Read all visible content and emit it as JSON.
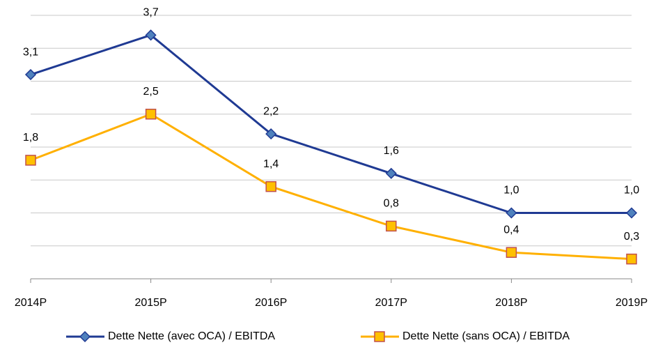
{
  "chart_data": {
    "type": "line",
    "categories": [
      "2014P",
      "2015P",
      "2016P",
      "2017P",
      "2018P",
      "2019P"
    ],
    "series": [
      {
        "name": "Dette Nette (avec OCA) / EBITDA",
        "color": "#1f3a93",
        "marker": "diamond",
        "marker_color": "#4f81bd",
        "marker_edge": "#1f3a93",
        "values": [
          3.1,
          3.7,
          2.2,
          1.6,
          1.0,
          1.0
        ],
        "value_labels": [
          "3,1",
          "3,7",
          "2,2",
          "1,6",
          "1,0",
          "1,0"
        ]
      },
      {
        "name": "Dette Nette (sans OCA) / EBITDA",
        "color": "#ffb000",
        "marker": "square",
        "marker_color": "#ffc000",
        "marker_edge": "#c0504d",
        "values": [
          1.8,
          2.5,
          1.4,
          0.8,
          0.4,
          0.3
        ],
        "value_labels": [
          "1,8",
          "2,5",
          "1,4",
          "0,8",
          "0,4",
          "0,3"
        ]
      }
    ],
    "ylim": [
      0,
      4
    ],
    "yticks": [
      0,
      0.5,
      1,
      1.5,
      2,
      2.5,
      3,
      3.5,
      4
    ],
    "grid": true,
    "legend": "bottom"
  }
}
